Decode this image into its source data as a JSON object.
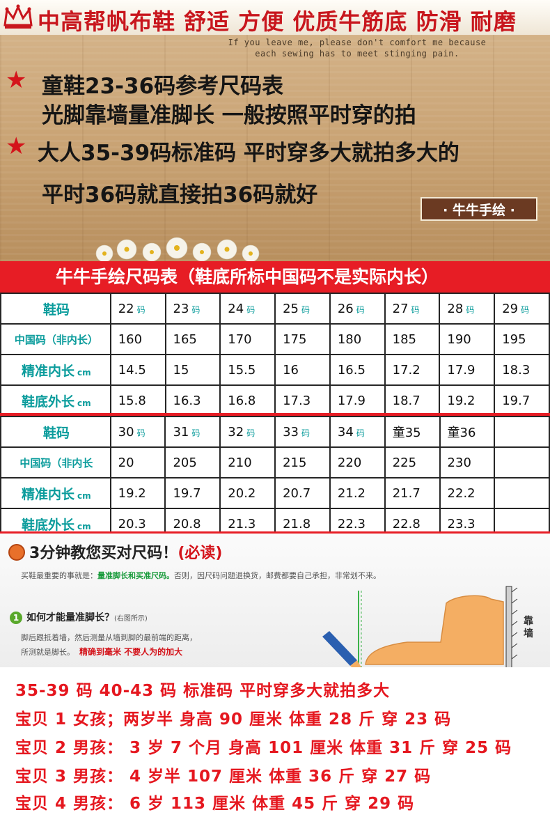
{
  "header": {
    "title": "中高帮帆布鞋  舒适 方便 优质牛筋底 防滑 耐磨",
    "quote_line1": "If you leave me, please don't comfort me because",
    "quote_line2": "each sewing has to meet stinging pain.",
    "notes": [
      "童鞋23-36码参考尺码表",
      "光脚靠墙量准脚长 一般按照平时穿的拍",
      "大人35-39码标准码 平时穿多大就拍多大的",
      "平时36码就直接拍36码就好"
    ],
    "badge": "· 牛牛手绘 ·",
    "colors": {
      "accent_red": "#e71d25",
      "label_teal": "#0b9c9c",
      "wood": "#c9a374"
    }
  },
  "size_table": {
    "banner": "牛牛手绘尺码表（鞋底所标中国码不是实际内长）",
    "row_labels": {
      "size": "鞋码",
      "china_code": "中国码（非内长）",
      "china_code_short": "中国码（非内长",
      "inner_length": "精准内长",
      "sole_length": "鞋底外长",
      "unit_cm": "cm",
      "unit_ma": "码"
    },
    "part1": {
      "sizes": [
        "22",
        "23",
        "24",
        "25",
        "26",
        "27",
        "28",
        "29"
      ],
      "china": [
        "160",
        "165",
        "170",
        "175",
        "180",
        "185",
        "190",
        "195"
      ],
      "inner": [
        "14.5",
        "15",
        "15.5",
        "16",
        "16.5",
        "17.2",
        "17.9",
        "18.3"
      ],
      "sole": [
        "15.8",
        "16.3",
        "16.8",
        "17.3",
        "17.9",
        "18.7",
        "19.2",
        "19.7"
      ]
    },
    "part2": {
      "sizes": [
        "30",
        "31",
        "32",
        "33",
        "34",
        "童35",
        "童36",
        ""
      ],
      "china": [
        "20",
        "205",
        "210",
        "215",
        "220",
        "225",
        "230",
        ""
      ],
      "inner": [
        "19.2",
        "19.7",
        "20.2",
        "20.7",
        "21.2",
        "21.7",
        "22.2",
        ""
      ],
      "sole": [
        "20.3",
        "20.8",
        "21.3",
        "21.8",
        "22.3",
        "22.8",
        "23.3",
        ""
      ]
    }
  },
  "guide": {
    "title": "3分钟教您买对尺码！",
    "title_tag": "(必读)",
    "intro_prefix": "买鞋最重要的事就是：",
    "intro_highlight": "量准脚长和买准尺码。",
    "intro_suffix": "否则，因尺码问题退换货，邮费都要自己承担，非常划不来。",
    "step_number": "1",
    "question": "如何才能量准脚长？",
    "question_note": "(右图所示)",
    "desc_line1": "脚后跟抵着墙，然后测量从墙到脚的最前端的距离，",
    "desc_line2": "所测就是脚长。",
    "desc_red": "精确到毫米 不要人为的加大",
    "wall_label": "靠墙"
  },
  "examples": [
    "35-39 码 40-43 码 标准码 平时穿多大就拍多大",
    "宝贝 1 女孩；两岁半  身高 90 厘米  体重 28 斤 穿 23 码",
    "宝贝 2 男孩： 3 岁 7 个月 身高 101 厘米 体重 31 斤 穿 25 码",
    "宝贝 3 男孩： 4 岁半  107 厘米  体重 36 斤  穿 27 码",
    "宝贝 4 男孩： 6 岁  113 厘米  体重 45 斤  穿 29 码"
  ]
}
